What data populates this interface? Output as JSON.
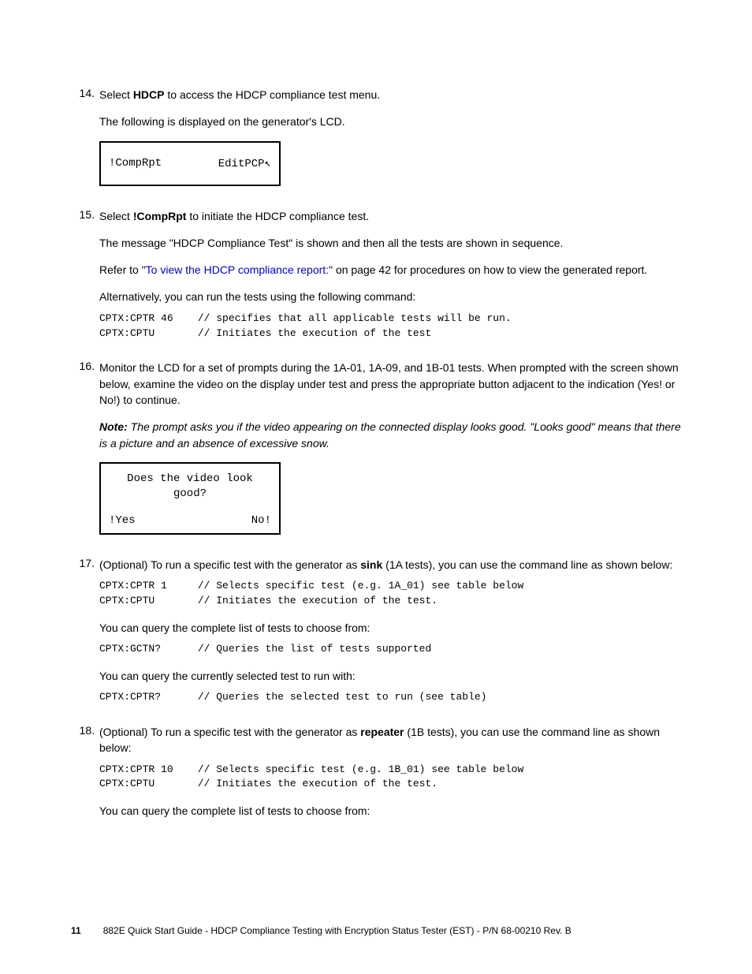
{
  "steps": {
    "s14": {
      "num": "14.",
      "line1_a": "Select ",
      "line1_b": "HDCP",
      "line1_c": " to access the HDCP compliance test menu.",
      "line2": "The following is displayed on the generator's LCD.",
      "lcd_left": "!CompRpt",
      "lcd_right": "EditPCP↖"
    },
    "s15": {
      "num": "15.",
      "line1_a": "Select ",
      "line1_b": "!CompRpt",
      "line1_c": " to initiate the HDCP compliance test.",
      "line2": "The message \"HDCP Compliance Test\" is shown and then all the tests are shown in sequence.",
      "line3_a": "Refer to \"",
      "line3_link": "To view the HDCP compliance report:",
      "line3_b": "\" on page 42 for procedures on how to view the generated report.",
      "line4": "Alternatively, you can run the tests using the following command:",
      "code": "CPTX:CPTR 46    // specifies that all applicable tests will be run.\nCPTX:CPTU       // Initiates the execution of the test"
    },
    "s16": {
      "num": "16.",
      "line1": "Monitor the LCD for a set of prompts during the 1A-01, 1A-09, and 1B-01 tests. When prompted with the screen shown below, examine the video on the display under test and press the appropriate button adjacent to the indication (Yes! or No!) to continue.",
      "note_label": "Note:",
      "note_text": "  The prompt asks you if the video appearing on the connected display looks good. \"Looks good\" means that there is a picture and an absence of excessive snow.",
      "lcd_line1": "Does the video look",
      "lcd_line2": "good?",
      "lcd_left": "!Yes",
      "lcd_right": "No!"
    },
    "s17": {
      "num": "17.",
      "line1_a": "(Optional) To run a specific test with the generator as ",
      "line1_b": "sink",
      "line1_c": " (1A tests), you can use the command line as shown below:",
      "code1": "CPTX:CPTR 1     // Selects specific test (e.g. 1A_01) see table below\nCPTX:CPTU       // Initiates the execution of the test.",
      "line2": "You can query the complete list of tests to choose from:",
      "code2": "CPTX:GCTN?      // Queries the list of tests supported",
      "line3": "You can query the currently selected test to run with:",
      "code3": "CPTX:CPTR?      // Queries the selected test to run (see table)"
    },
    "s18": {
      "num": "18.",
      "line1_a": "(Optional) To run a specific test with the generator as ",
      "line1_b": "repeater",
      "line1_c": " (1B tests), you can use the command line as shown below:",
      "code1": "CPTX:CPTR 10    // Selects specific test (e.g. 1B_01) see table below\nCPTX:CPTU       // Initiates the execution of the test.",
      "line2": "You can query the complete list of tests to choose from:"
    }
  },
  "footer": {
    "page_num": "11",
    "text": "882E Quick Start Guide - HDCP Compliance Testing with Encryption Status Tester (EST)    -   P/N 68-00210 Rev. B"
  }
}
